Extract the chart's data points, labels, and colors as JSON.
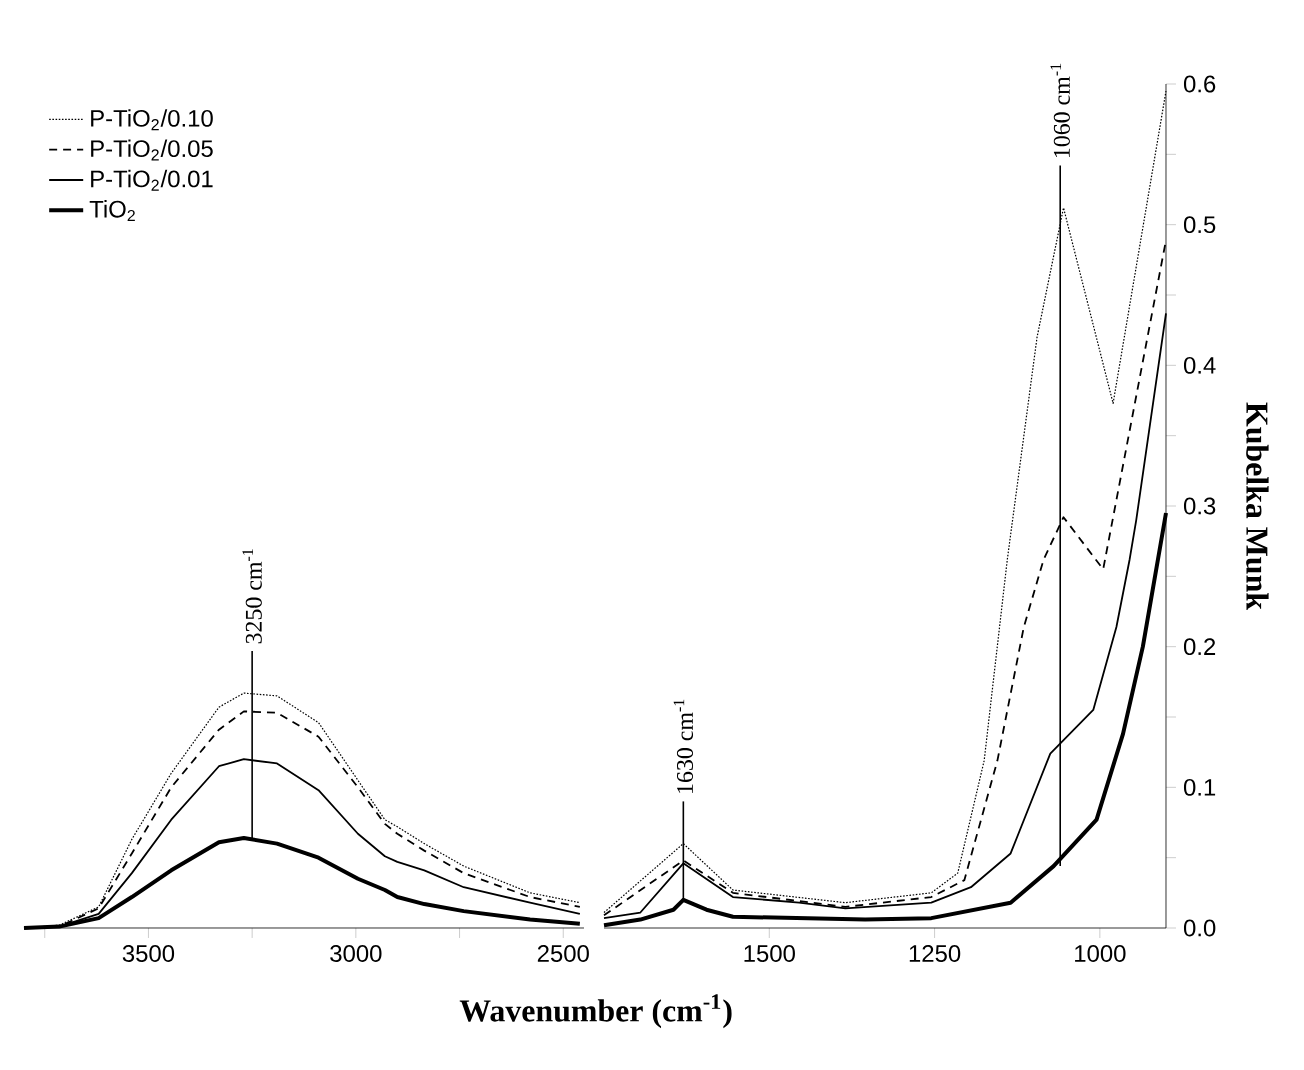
{
  "chart_data": [
    {
      "type": "line",
      "xlim": [
        3800,
        2450
      ],
      "ylim": [
        0,
        0.6
      ],
      "xticks": [
        {
          "value": 3750,
          "label": null
        },
        3500,
        {
          "value": 3250,
          "label": null
        },
        3000,
        {
          "value": 2750,
          "label": null
        },
        2500
      ],
      "tick_labels": "x",
      "legend": "top left",
      "marker": "none",
      "x": [
        3800,
        3715,
        3620,
        3540,
        3445,
        3330,
        3270,
        3190,
        3090,
        2995,
        2930,
        2900,
        2835,
        2740,
        2580,
        2460
      ],
      "series": [
        {
          "name": "P-TiO$_{2}$/0.10",
          "color": "#000000",
          "line_style": "dotted",
          "values": [
            0,
            0.002,
            0.015,
            0.063,
            0.11,
            0.157,
            0.167,
            0.165,
            0.146,
            0.105,
            0.077,
            0.072,
            0.06,
            0.044,
            0.025,
            0.018
          ]
        },
        {
          "name": "P-TiO$_{2}$/0.05",
          "color": "#000000",
          "line_style": "dashed",
          "values": [
            0,
            0.001,
            0.014,
            0.053,
            0.1,
            0.141,
            0.154,
            0.153,
            0.136,
            0.1,
            0.074,
            0.067,
            0.055,
            0.039,
            0.022,
            0.015
          ]
        },
        {
          "name": "P-TiO$_{2}$/0.01",
          "color": "#000000",
          "line_style": "solid",
          "values": [
            0,
            0.001,
            0.01,
            0.039,
            0.077,
            0.115,
            0.12,
            0.117,
            0.098,
            0.067,
            0.051,
            0.047,
            0.041,
            0.029,
            0.018,
            0.01
          ]
        },
        {
          "name": "TiO$_{2}$",
          "color": "#000000",
          "line_style": "solid",
          "values": [
            0,
            0.001,
            0.007,
            0.022,
            0.041,
            0.061,
            0.064,
            0.06,
            0.05,
            0.035,
            0.027,
            0.022,
            0.017,
            0.012,
            0.006,
            0.003
          ]
        }
      ],
      "ref_lines": [
        {
          "axis": "x",
          "value": 3250,
          "label": "3250 cm$^{-1}$"
        }
      ]
    },
    {
      "type": "line",
      "xlim": [
        1750,
        900
      ],
      "ylim": [
        0,
        0.6
      ],
      "xticks": [
        1500,
        1250,
        1000
      ],
      "yticks": [
        {
          "value": 0,
          "label": "0.0"
        },
        {
          "value": 0.05,
          "label": null
        },
        {
          "value": 0.1,
          "label": "0.1"
        },
        {
          "value": 0.15,
          "label": null
        },
        {
          "value": 0.2,
          "label": "0.2"
        },
        {
          "value": 0.25,
          "label": null
        },
        {
          "value": 0.3,
          "label": "0.3"
        },
        {
          "value": 0.35,
          "label": null
        },
        {
          "value": 0.4,
          "label": "0.4"
        },
        {
          "value": 0.45,
          "label": null
        },
        {
          "value": 0.5,
          "label": "0.5"
        },
        {
          "value": 0.55,
          "label": null
        },
        {
          "value": 0.6,
          "label": "0.6"
        }
      ],
      "xlabel": "Wavenumber (cm$^{-1}$)",
      "ylabel": "Kubelka Munk",
      "marker": "none",
      "series": [
        {
          "color": "#000000",
          "line_style": "dotted",
          "x": [
            1750,
            1630,
            1555,
            1385,
            1255,
            1215,
            1175,
            1140,
            1095,
            1055,
            980,
            900
          ],
          "values": [
            0.011,
            0.06,
            0.027,
            0.018,
            0.025,
            0.039,
            0.119,
            0.262,
            0.42,
            0.512,
            0.373,
            0.595
          ]
        },
        {
          "color": "#000000",
          "line_style": "dashed",
          "x": [
            1750,
            1630,
            1555,
            1385,
            1255,
            1205,
            1155,
            1115,
            1085,
            1055,
            995,
            900
          ],
          "values": [
            0.009,
            0.048,
            0.025,
            0.015,
            0.022,
            0.034,
            0.119,
            0.214,
            0.262,
            0.292,
            0.255,
            0.489
          ]
        },
        {
          "color": "#000000",
          "line_style": "solid",
          "x": [
            1750,
            1695,
            1630,
            1555,
            1455,
            1385,
            1255,
            1195,
            1135,
            1075,
            1010,
            975,
            955,
            945,
            900
          ],
          "values": [
            0.007,
            0.011,
            0.046,
            0.022,
            0.018,
            0.014,
            0.018,
            0.029,
            0.053,
            0.124,
            0.155,
            0.214,
            0.262,
            0.29,
            0.437
          ]
        },
        {
          "color": "#000000",
          "line_style": "solid",
          "x": [
            1750,
            1695,
            1645,
            1630,
            1595,
            1555,
            1455,
            1355,
            1255,
            1135,
            1070,
            1005,
            965,
            935,
            900
          ],
          "values": [
            0.002,
            0.006,
            0.013,
            0.02,
            0.013,
            0.008,
            0.007,
            0.006,
            0.007,
            0.018,
            0.044,
            0.077,
            0.138,
            0.2,
            0.295
          ]
        }
      ],
      "ref_lines": [
        {
          "axis": "x",
          "value": 1630,
          "label": "1630 cm$^{-1}$"
        },
        {
          "axis": "x",
          "value": 1060,
          "label": "1060 cm$^{-1}$"
        }
      ]
    }
  ]
}
